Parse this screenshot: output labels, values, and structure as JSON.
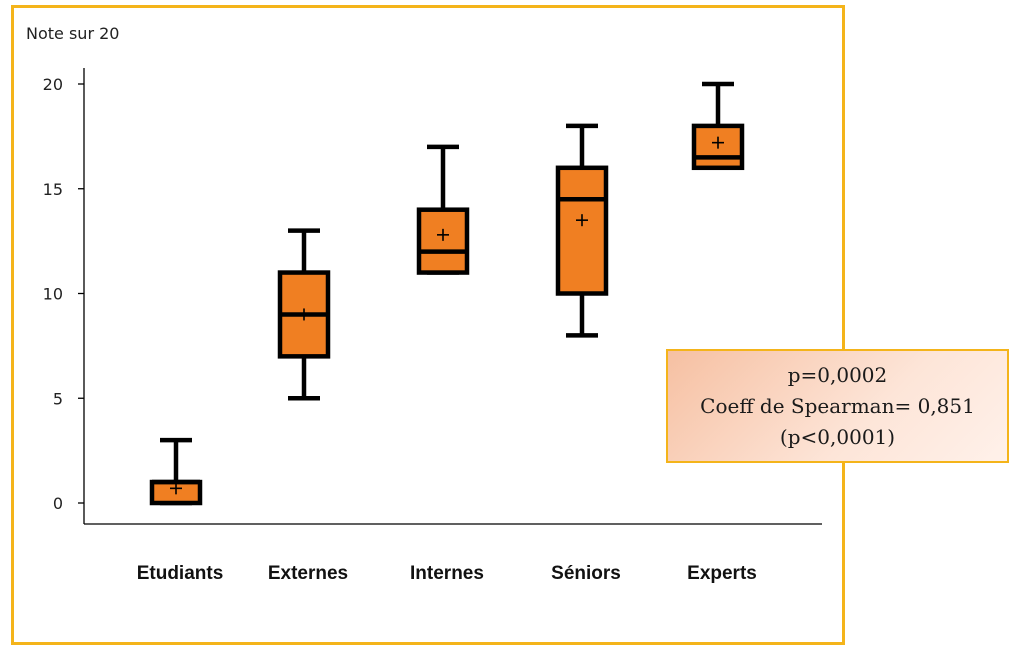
{
  "chart_data": {
    "type": "box",
    "y_unit_label": "Note sur 20",
    "ylim": [
      0,
      20
    ],
    "yticks": [
      "0",
      "5",
      "10",
      "15",
      "20"
    ],
    "grid": false,
    "categories": [
      "Etudiants",
      "Externes",
      "Internes",
      "Séniors",
      "Experts"
    ],
    "boxes": [
      {
        "category": "Etudiants",
        "min": 0,
        "q1": 0,
        "median": 1,
        "q3": 1,
        "max": 3,
        "mean": 0.7
      },
      {
        "category": "Externes",
        "min": 5,
        "q1": 7,
        "median": 9,
        "q3": 11,
        "max": 13,
        "mean": 9
      },
      {
        "category": "Internes",
        "min": 11,
        "q1": 11,
        "median": 12,
        "q3": 14,
        "max": 17,
        "mean": 12.8
      },
      {
        "category": "Séniors",
        "min": 8,
        "q1": 10,
        "median": 14.5,
        "q3": 16,
        "max": 18,
        "mean": 13.5
      },
      {
        "category": "Experts",
        "min": 16,
        "q1": 16,
        "median": 16.5,
        "q3": 18,
        "max": 20,
        "mean": 17.2
      }
    ],
    "colors": {
      "box_fill": "#f07f22",
      "stroke": "#000000",
      "frame": "#f4b41a"
    },
    "annotation": [
      "p=0,0002",
      "Coeff de Spearman= 0,851",
      "(p<0,0001)"
    ]
  }
}
